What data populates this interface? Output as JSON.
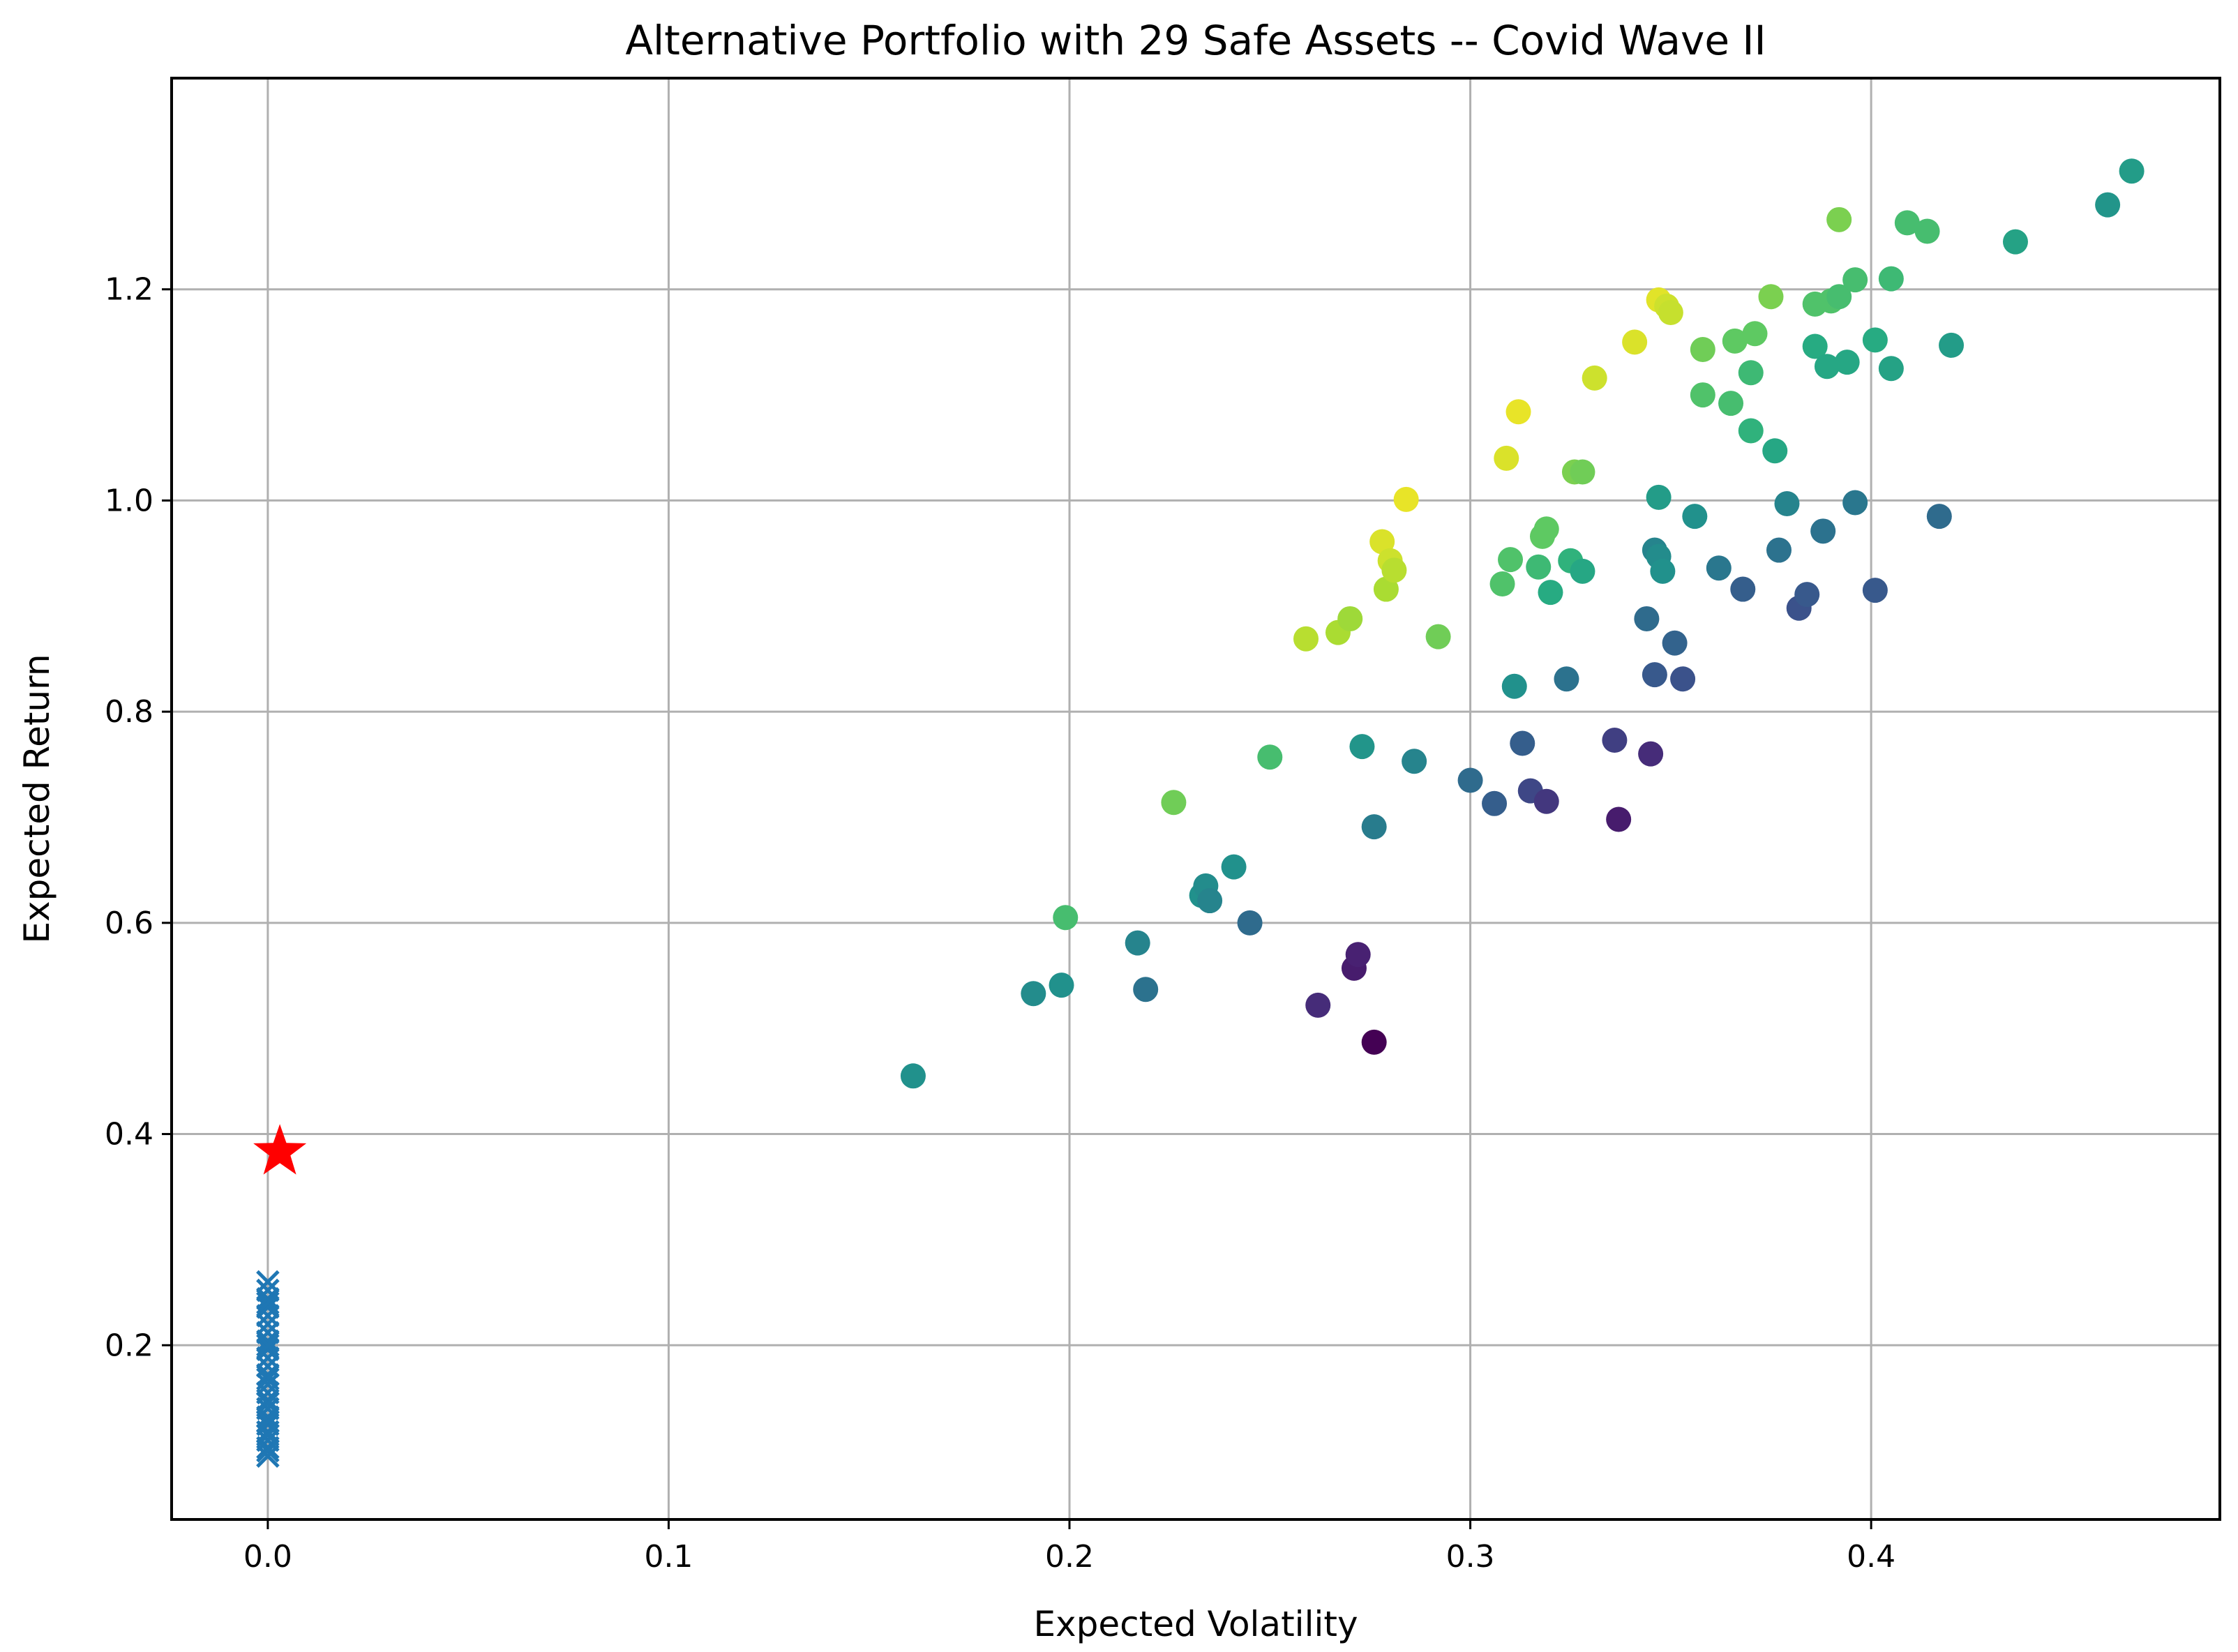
{
  "chart_data": {
    "type": "scatter",
    "title": "Alternative Portfolio with 29 Safe Assets -- Covid Wave II",
    "xlabel": "Expected Volatility",
    "ylabel": "Expected Return",
    "xlim": [
      -0.024,
      0.487
    ],
    "ylim": [
      0.035,
      1.4
    ],
    "grid": true,
    "x_ticks": [
      0.0,
      0.1,
      0.2,
      0.3,
      0.4
    ],
    "x_tick_labels": [
      "0.0",
      "0.1",
      "0.2",
      "0.3",
      "0.4"
    ],
    "y_ticks": [
      0.2,
      0.4,
      0.6,
      0.8,
      1.0,
      1.2
    ],
    "y_tick_labels": [
      "0.2",
      "0.4",
      "0.6",
      "0.8",
      "1.0",
      "1.2"
    ],
    "colormap": "viridis",
    "series": [
      {
        "name": "portfolios",
        "marker": "circle",
        "color_by": "sharpe_ratio",
        "points": [
          [
            0.161,
            0.455,
            0.5
          ],
          [
            0.191,
            0.533,
            0.48
          ],
          [
            0.198,
            0.541,
            0.5
          ],
          [
            0.199,
            0.605,
            0.7
          ],
          [
            0.217,
            0.581,
            0.45
          ],
          [
            0.219,
            0.537,
            0.38
          ],
          [
            0.226,
            0.714,
            0.78
          ],
          [
            0.233,
            0.626,
            0.5
          ],
          [
            0.234,
            0.635,
            0.48
          ],
          [
            0.235,
            0.621,
            0.45
          ],
          [
            0.241,
            0.653,
            0.5
          ],
          [
            0.245,
            0.6,
            0.35
          ],
          [
            0.25,
            0.757,
            0.7
          ],
          [
            0.259,
            0.869,
            0.9
          ],
          [
            0.262,
            0.522,
            0.15
          ],
          [
            0.267,
            0.875,
            0.88
          ],
          [
            0.27,
            0.888,
            0.86
          ],
          [
            0.271,
            0.557,
            0.1
          ],
          [
            0.272,
            0.57,
            0.12
          ],
          [
            0.273,
            0.767,
            0.52
          ],
          [
            0.276,
            0.691,
            0.42
          ],
          [
            0.276,
            0.487,
            0.0
          ],
          [
            0.278,
            0.961,
            0.95
          ],
          [
            0.279,
            0.916,
            0.88
          ],
          [
            0.28,
            0.943,
            0.93
          ],
          [
            0.281,
            0.934,
            0.9
          ],
          [
            0.284,
            1.001,
            0.97
          ],
          [
            0.286,
            0.753,
            0.45
          ],
          [
            0.292,
            0.871,
            0.78
          ],
          [
            0.3,
            0.735,
            0.35
          ],
          [
            0.306,
            0.713,
            0.3
          ],
          [
            0.308,
            0.921,
            0.72
          ],
          [
            0.309,
            1.04,
            0.95
          ],
          [
            0.31,
            0.944,
            0.72
          ],
          [
            0.311,
            0.824,
            0.5
          ],
          [
            0.312,
            1.084,
            0.97
          ],
          [
            0.313,
            0.77,
            0.3
          ],
          [
            0.315,
            0.725,
            0.22
          ],
          [
            0.317,
            0.937,
            0.68
          ],
          [
            0.318,
            0.966,
            0.75
          ],
          [
            0.319,
            0.715,
            0.18
          ],
          [
            0.319,
            0.973,
            0.75
          ],
          [
            0.32,
            0.913,
            0.62
          ],
          [
            0.324,
            0.831,
            0.38
          ],
          [
            0.325,
            0.943,
            0.65
          ],
          [
            0.326,
            1.027,
            0.8
          ],
          [
            0.328,
            1.027,
            0.78
          ],
          [
            0.328,
            0.933,
            0.6
          ],
          [
            0.331,
            1.116,
            0.93
          ],
          [
            0.336,
            0.773,
            0.2
          ],
          [
            0.337,
            0.698,
            0.1
          ],
          [
            0.341,
            1.15,
            0.95
          ],
          [
            0.344,
            0.888,
            0.35
          ],
          [
            0.345,
            0.76,
            0.15
          ],
          [
            0.346,
            0.835,
            0.28
          ],
          [
            0.346,
            0.953,
            0.45
          ],
          [
            0.347,
            0.947,
            0.48
          ],
          [
            0.347,
            1.003,
            0.55
          ],
          [
            0.347,
            1.19,
            0.96
          ],
          [
            0.348,
            0.933,
            0.5
          ],
          [
            0.349,
            1.184,
            0.93
          ],
          [
            0.35,
            1.178,
            0.92
          ],
          [
            0.351,
            0.865,
            0.32
          ],
          [
            0.353,
            0.831,
            0.25
          ],
          [
            0.356,
            0.985,
            0.5
          ],
          [
            0.358,
            1.143,
            0.78
          ],
          [
            0.358,
            1.1,
            0.72
          ],
          [
            0.362,
            0.936,
            0.4
          ],
          [
            0.365,
            1.092,
            0.7
          ],
          [
            0.366,
            1.151,
            0.75
          ],
          [
            0.368,
            0.916,
            0.3
          ],
          [
            0.37,
            1.066,
            0.65
          ],
          [
            0.37,
            1.121,
            0.68
          ],
          [
            0.371,
            1.158,
            0.75
          ],
          [
            0.375,
            1.193,
            0.8
          ],
          [
            0.376,
            1.047,
            0.6
          ],
          [
            0.377,
            0.953,
            0.38
          ],
          [
            0.379,
            0.997,
            0.45
          ],
          [
            0.382,
            0.898,
            0.25
          ],
          [
            0.384,
            0.911,
            0.28
          ],
          [
            0.386,
            1.186,
            0.72
          ],
          [
            0.386,
            1.146,
            0.62
          ],
          [
            0.388,
            0.971,
            0.38
          ],
          [
            0.389,
            1.127,
            0.6
          ],
          [
            0.39,
            1.189,
            0.72
          ],
          [
            0.392,
            1.266,
            0.8
          ],
          [
            0.392,
            1.193,
            0.7
          ],
          [
            0.394,
            1.131,
            0.6
          ],
          [
            0.396,
            1.209,
            0.7
          ],
          [
            0.396,
            0.998,
            0.4
          ],
          [
            0.401,
            0.915,
            0.28
          ],
          [
            0.401,
            1.152,
            0.62
          ],
          [
            0.405,
            1.125,
            0.58
          ],
          [
            0.405,
            1.21,
            0.68
          ],
          [
            0.409,
            1.263,
            0.7
          ],
          [
            0.414,
            1.255,
            0.7
          ],
          [
            0.417,
            0.985,
            0.35
          ],
          [
            0.42,
            1.147,
            0.55
          ],
          [
            0.436,
            1.245,
            0.58
          ],
          [
            0.459,
            1.28,
            0.52
          ],
          [
            0.465,
            1.312,
            0.55
          ]
        ]
      },
      {
        "name": "safe assets",
        "marker": "x",
        "color": "#1f77b4",
        "points": [
          [
            0.0,
            0.095
          ],
          [
            0.0,
            0.103
          ],
          [
            0.0,
            0.11
          ],
          [
            0.0,
            0.118
          ],
          [
            0.0,
            0.125
          ],
          [
            0.0,
            0.132
          ],
          [
            0.0,
            0.14
          ],
          [
            0.0,
            0.148
          ],
          [
            0.0,
            0.155
          ],
          [
            0.0,
            0.163
          ],
          [
            0.0,
            0.172
          ],
          [
            0.0,
            0.18
          ],
          [
            0.0,
            0.188
          ],
          [
            0.0,
            0.196
          ],
          [
            0.0,
            0.204
          ],
          [
            0.0,
            0.212
          ],
          [
            0.0,
            0.22
          ],
          [
            0.0,
            0.228
          ],
          [
            0.0,
            0.236
          ],
          [
            0.0,
            0.244
          ],
          [
            0.0,
            0.252
          ],
          [
            0.0,
            0.26
          ],
          [
            0.0,
            0.1
          ],
          [
            0.0,
            0.115
          ],
          [
            0.0,
            0.128
          ],
          [
            0.0,
            0.145
          ],
          [
            0.0,
            0.168
          ],
          [
            0.0,
            0.2
          ],
          [
            0.0,
            0.24
          ]
        ]
      },
      {
        "name": "optimal portfolio",
        "marker": "star",
        "color": "#ff0000",
        "points": [
          [
            0.003,
            0.383
          ]
        ]
      }
    ]
  }
}
